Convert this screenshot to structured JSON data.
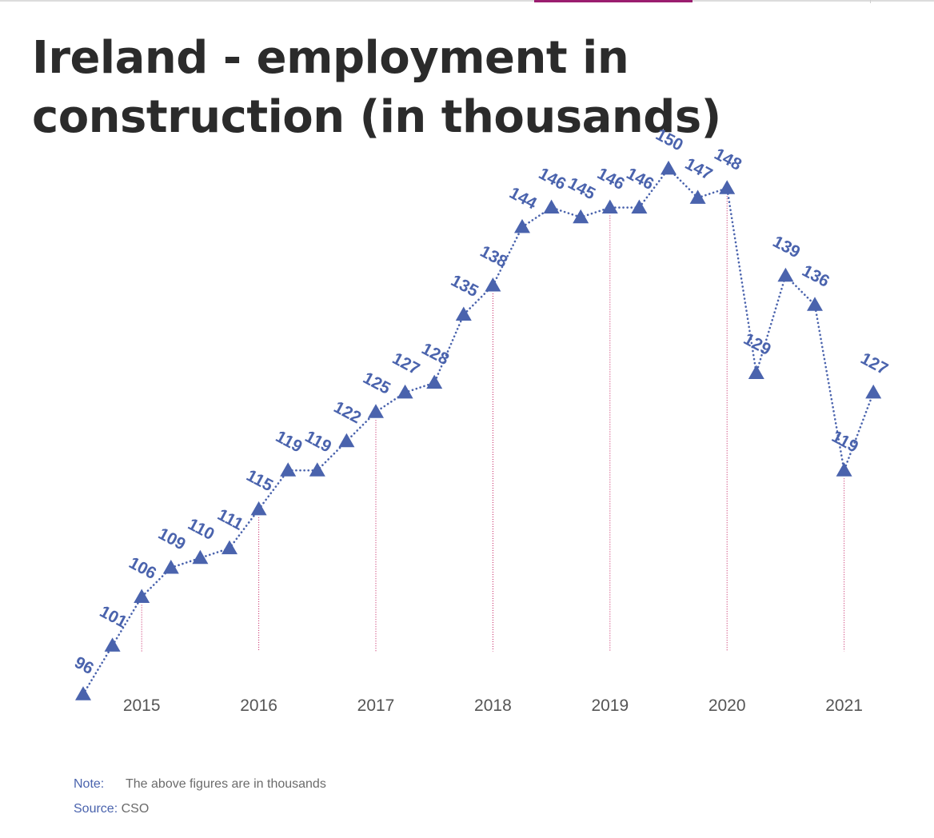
{
  "title": "Ireland - employment in construction (in thousands)",
  "note": {
    "label": "Note:",
    "text": "The above figures are in thousands"
  },
  "source": {
    "label": "Source:",
    "text": "CSO"
  },
  "colors": {
    "series": "#4a63ad",
    "guide": "#c2185b",
    "axis_text": "#555555"
  },
  "chart_data": {
    "type": "line",
    "marker": "triangle",
    "line_style": "dotted",
    "x_ticks": [
      "2015",
      "2016",
      "2017",
      "2018",
      "2019",
      "2020",
      "2021"
    ],
    "x": [
      "2014 Q3",
      "2014 Q4",
      "2015 Q1",
      "2015 Q2",
      "2015 Q3",
      "2015 Q4",
      "2016 Q1",
      "2016 Q2",
      "2016 Q3",
      "2016 Q4",
      "2017 Q1",
      "2017 Q2",
      "2017 Q3",
      "2017 Q4",
      "2018 Q1",
      "2018 Q2",
      "2018 Q3",
      "2018 Q4",
      "2019 Q1",
      "2019 Q2",
      "2019 Q3",
      "2019 Q4",
      "2020 Q1",
      "2020 Q2",
      "2020 Q3",
      "2020 Q4",
      "2021 Q1",
      "2021 Q2"
    ],
    "values": [
      96,
      101,
      106,
      109,
      110,
      111,
      115,
      119,
      119,
      122,
      125,
      127,
      128,
      135,
      138,
      144,
      146,
      145,
      146,
      146,
      150,
      147,
      148,
      129,
      139,
      136,
      119,
      127
    ],
    "data_labels": [
      "96",
      "101",
      "106",
      "109",
      "110",
      "111",
      "115",
      "119",
      "119",
      "122",
      "125",
      "127",
      "128",
      "135",
      "138",
      "144",
      "146",
      "145",
      "146",
      "146",
      "150",
      "147",
      "148",
      "129",
      "139",
      "136",
      "119",
      "127"
    ],
    "ylim": [
      80,
      155
    ],
    "y_axis_visible": false,
    "grid": false,
    "legend": "none"
  }
}
